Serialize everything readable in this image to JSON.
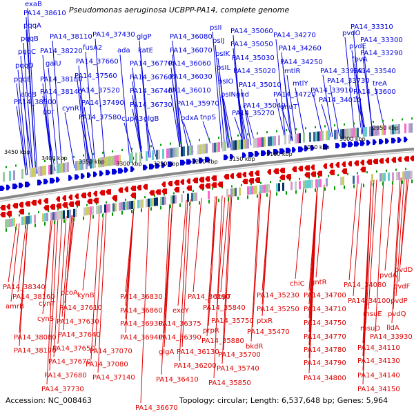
{
  "title": "Pseudomonas aeruginosa UCBPP-PA14, complete genome",
  "accession": "Accession: NC_008463",
  "summary": "Topology: circular; Length: 6,537,648 bp; Genes: 5,964",
  "colors": {
    "forward": "#0000dd",
    "reverse": "#dd0000",
    "backbone": "#888888",
    "tick": "#009900"
  },
  "scale_labels": [
    "3450 kbp",
    "3400 kbp",
    "3350 kbp",
    "3300 kbp",
    "3250 kbp",
    "3200 kbp",
    "3150 kbp",
    "3100 kbp",
    "3050 kbp",
    "3000 kbp",
    "2950 kbp"
  ],
  "top_genes": [
    "exaB",
    "PA14_38610",
    "pqqA",
    "pqqB",
    "pqqC",
    "pqqD",
    "pqqE",
    "atoB",
    "PA14_38500",
    "galU",
    "gor",
    "PA14_38110",
    "PA14_38220",
    "PA14_38180",
    "PA14_38140",
    "cynR",
    "fusA2",
    "PA14_37660",
    "PA14_37560",
    "PA14_37520",
    "PA14_37490",
    "PA14_37580",
    "PA14_37430",
    "ada",
    "glgP",
    "katE",
    "PA14_36770",
    "PA14_36760",
    "PA14_36740",
    "PA14_36730",
    "cupA3",
    "glgB",
    "PA14_36080",
    "PA14_36070",
    "PA14_36060",
    "PA14_36030",
    "PA14_36010",
    "PA14_35970",
    "pdxA",
    "tnpS",
    "psII",
    "psIJ",
    "psIK",
    "psIL",
    "psIO",
    "psIN",
    "PA14_35060",
    "PA14_35050",
    "PA14_35030",
    "PA14_35020",
    "gnd",
    "PA14_35010",
    "PA14_35040",
    "PA14_35270",
    "PA14_34270",
    "PA14_34260",
    "PA14_34250",
    "mtlR",
    "mtlY",
    "PA14_34720",
    "gnuT",
    "pvdO",
    "pvdE",
    "fpvA",
    "PA14_33920",
    "PA14_33910",
    "PA14_34010",
    "PA14_33730",
    "PA14_33310",
    "PA14_33300",
    "PA14_33290",
    "PA14_33540",
    "treA",
    "PA14_33600"
  ],
  "bottom_genes": [
    "PA14_38340",
    "PA14_38160",
    "amrB",
    "cynT",
    "cynS",
    "pcoA",
    "kynB",
    "PA14_37610",
    "PA14_37630",
    "PA14_38080",
    "PA14_37640",
    "PA14_38170",
    "PA14_37650",
    "PA14_37670",
    "PA14_37680",
    "PA14_37730",
    "PA14_37080",
    "PA14_37070",
    "PA14_37140",
    "PA14_36830",
    "PA14_36860",
    "PA14_36930",
    "PA14_36940",
    "glgA",
    "PA14_36670",
    "PA14_36190",
    "exoY",
    "PA14_36375",
    "PA14_36390",
    "PA14_36130",
    "PA14_36200",
    "PA14_36410",
    "tnpT",
    "PA14_35840",
    "prpR",
    "PA14_35750",
    "PA14_35880",
    "PA14_35700",
    "PA14_35740",
    "PA14_35850",
    "PA14_35230",
    "PA14_35250",
    "ptxR",
    "PA14_35470",
    "bkdR",
    "chiC",
    "gntR",
    "PA14_34700",
    "PA14_34710",
    "PA14_34750",
    "PA14_34770",
    "PA14_34780",
    "PA14_34790",
    "PA14_34800",
    "pvdD",
    "pvdA",
    "pvdF",
    "PA14_34080",
    "PA14_34100",
    "pvdP",
    "msuE",
    "pvdQ",
    "msuD",
    "lldA",
    "PA14_33930",
    "PA14_34110",
    "PA14_34130",
    "PA14_34140",
    "PA14_34150"
  ]
}
